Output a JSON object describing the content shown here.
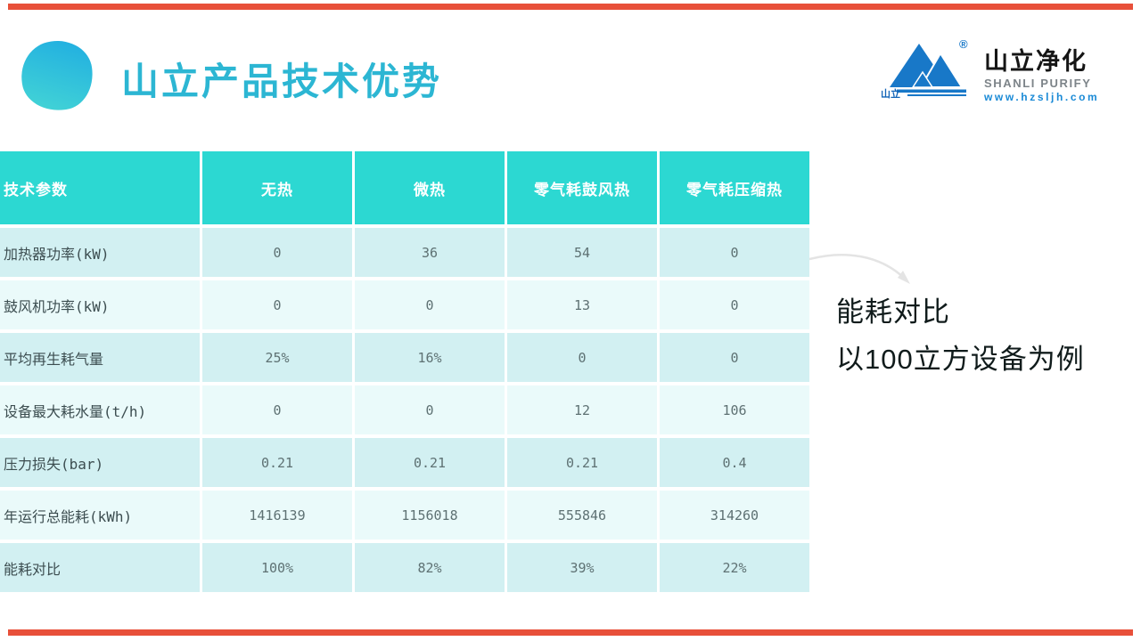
{
  "slide": {
    "title": "山立产品技术优势"
  },
  "logo": {
    "brand_cn": "山立净化",
    "brand_en": "SHANLI PURIFY",
    "website": "www.hzsljh.com",
    "mark_label": "山立",
    "registered": "®"
  },
  "annotation": {
    "line1": "能耗对比",
    "line2": "以100立方设备为例"
  },
  "table": {
    "headers": [
      "技术参数",
      "无热",
      "微热",
      "零气耗鼓风热",
      "零气耗压缩热"
    ],
    "rows": [
      {
        "label": "加热器功率(kW)",
        "values": [
          "0",
          "36",
          "54",
          "0"
        ]
      },
      {
        "label": "鼓风机功率(kW)",
        "values": [
          "0",
          "0",
          "13",
          "0"
        ]
      },
      {
        "label": "平均再生耗气量",
        "values": [
          "25%",
          "16%",
          "0",
          "0"
        ]
      },
      {
        "label": "设备最大耗水量(t/h)",
        "values": [
          "0",
          "0",
          "12",
          "106"
        ]
      },
      {
        "label": "压力损失(bar)",
        "values": [
          "0.21",
          "0.21",
          "0.21",
          "0.4"
        ]
      },
      {
        "label": "年运行总能耗(kWh)",
        "values": [
          "1416139",
          "1156018",
          "555846",
          "314260"
        ]
      },
      {
        "label": "能耗对比",
        "values": [
          "100%",
          "82%",
          "39%",
          "22%"
        ]
      }
    ]
  },
  "colors": {
    "accent_red": "#e8503a",
    "header_teal": "#2cd8d2",
    "row_dark": "#d2f0f2",
    "row_light": "#eafafa",
    "logo_blue": "#1878c8",
    "title_teal": "#2cb6d3",
    "arrow_gray": "#e4e4e4"
  }
}
